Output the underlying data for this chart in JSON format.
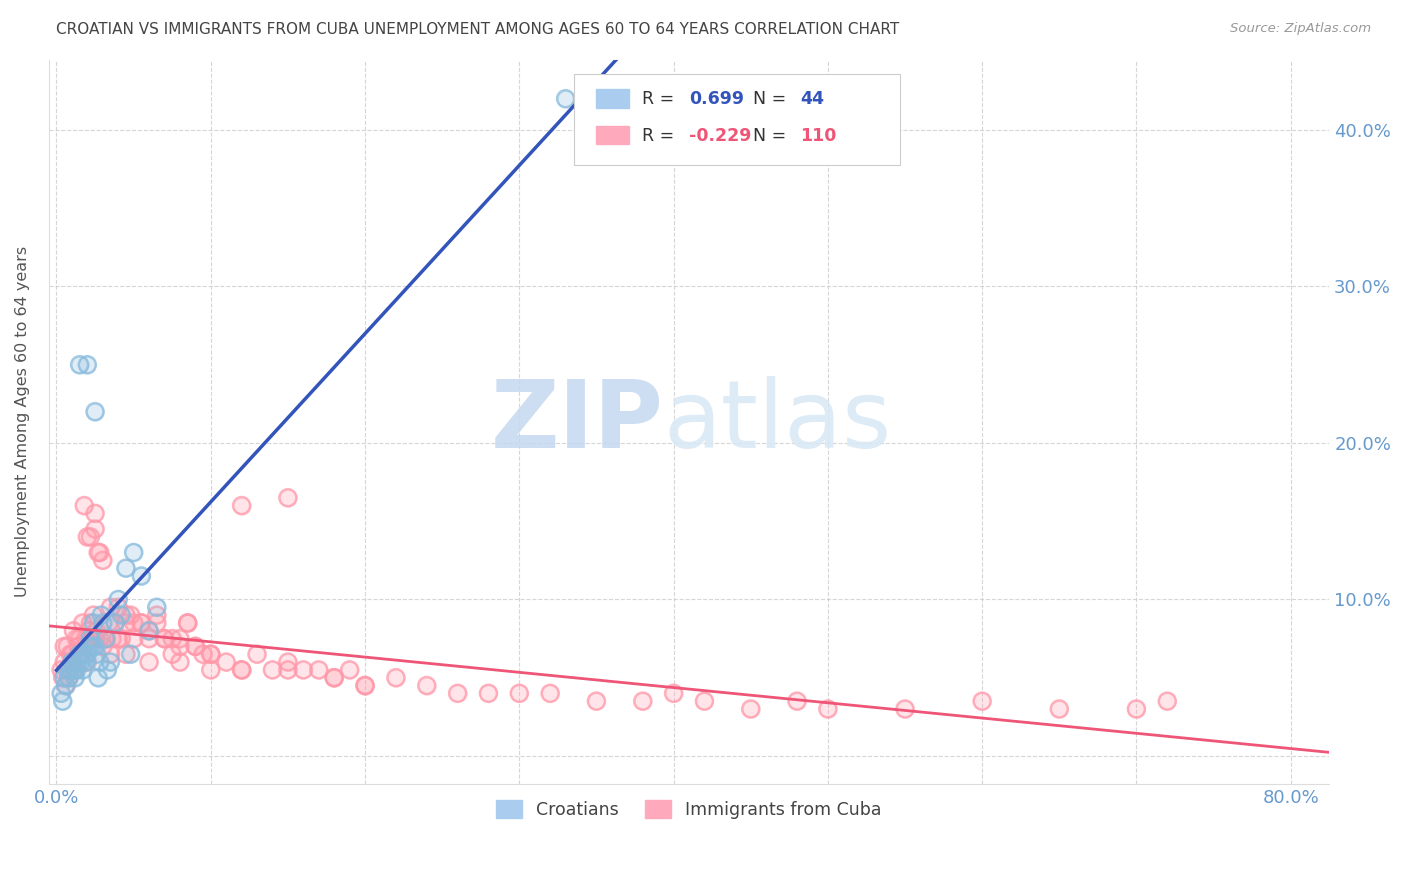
{
  "title": "CROATIAN VS IMMIGRANTS FROM CUBA UNEMPLOYMENT AMONG AGES 60 TO 64 YEARS CORRELATION CHART",
  "source_text": "Source: ZipAtlas.com",
  "ylabel": "Unemployment Among Ages 60 to 64 years",
  "watermark_zip": "ZIP",
  "watermark_atlas": "atlas",
  "r_croatian": 0.699,
  "n_croatian": 44,
  "r_cuba": -0.229,
  "n_cuba": 110,
  "xlim_min": -0.005,
  "xlim_max": 0.825,
  "ylim_min": -0.018,
  "ylim_max": 0.445,
  "xtick_positions": [
    0.0,
    0.1,
    0.2,
    0.3,
    0.4,
    0.5,
    0.6,
    0.7,
    0.8
  ],
  "xtick_labels": [
    "0.0%",
    "",
    "",
    "",
    "",
    "",
    "",
    "",
    "80.0%"
  ],
  "ytick_positions": [
    0.0,
    0.1,
    0.2,
    0.3,
    0.4
  ],
  "ytick_labels": [
    "",
    "10.0%",
    "20.0%",
    "30.0%",
    "40.0%"
  ],
  "blue_scatter_color": "#88BBDD",
  "pink_scatter_color": "#FF99AA",
  "blue_line_color": "#3355BB",
  "pink_line_color": "#EE5577",
  "dashed_line_color": "#99BBDD",
  "axis_tick_color": "#6699CC",
  "title_color": "#444444",
  "source_color": "#999999",
  "background_color": "#FFFFFF",
  "grid_color": "#CCCCCC",
  "legend_label1": "Croatians",
  "legend_label2": "Immigrants from Cuba",
  "croatian_x": [
    0.003,
    0.004,
    0.005,
    0.006,
    0.007,
    0.008,
    0.009,
    0.01,
    0.011,
    0.012,
    0.013,
    0.014,
    0.015,
    0.016,
    0.017,
    0.018,
    0.019,
    0.02,
    0.021,
    0.022,
    0.023,
    0.024,
    0.025,
    0.026,
    0.027,
    0.028,
    0.029,
    0.03,
    0.032,
    0.033,
    0.035,
    0.038,
    0.04,
    0.042,
    0.045,
    0.048,
    0.05,
    0.055,
    0.06,
    0.065,
    0.015,
    0.02,
    0.025,
    0.33
  ],
  "croatian_y": [
    0.04,
    0.035,
    0.05,
    0.045,
    0.055,
    0.05,
    0.055,
    0.06,
    0.055,
    0.05,
    0.055,
    0.06,
    0.065,
    0.06,
    0.055,
    0.065,
    0.06,
    0.065,
    0.07,
    0.075,
    0.07,
    0.085,
    0.07,
    0.065,
    0.05,
    0.06,
    0.09,
    0.085,
    0.075,
    0.055,
    0.06,
    0.085,
    0.1,
    0.09,
    0.12,
    0.065,
    0.13,
    0.115,
    0.08,
    0.095,
    0.25,
    0.25,
    0.22,
    0.42
  ],
  "cuba_x": [
    0.003,
    0.004,
    0.005,
    0.006,
    0.007,
    0.008,
    0.009,
    0.01,
    0.011,
    0.012,
    0.013,
    0.014,
    0.015,
    0.016,
    0.017,
    0.018,
    0.019,
    0.02,
    0.021,
    0.022,
    0.023,
    0.024,
    0.025,
    0.026,
    0.027,
    0.028,
    0.03,
    0.032,
    0.034,
    0.036,
    0.038,
    0.04,
    0.042,
    0.045,
    0.048,
    0.05,
    0.055,
    0.06,
    0.065,
    0.07,
    0.075,
    0.08,
    0.085,
    0.09,
    0.095,
    0.1,
    0.11,
    0.12,
    0.13,
    0.14,
    0.15,
    0.16,
    0.17,
    0.18,
    0.19,
    0.2,
    0.22,
    0.24,
    0.26,
    0.28,
    0.3,
    0.32,
    0.35,
    0.38,
    0.4,
    0.42,
    0.45,
    0.48,
    0.5,
    0.55,
    0.6,
    0.65,
    0.7,
    0.72,
    0.005,
    0.008,
    0.01,
    0.012,
    0.015,
    0.018,
    0.02,
    0.022,
    0.025,
    0.028,
    0.03,
    0.035,
    0.04,
    0.045,
    0.05,
    0.055,
    0.06,
    0.065,
    0.07,
    0.075,
    0.08,
    0.085,
    0.09,
    0.1,
    0.12,
    0.15,
    0.025,
    0.035,
    0.045,
    0.06,
    0.08,
    0.1,
    0.12,
    0.15,
    0.18,
    0.2
  ],
  "cuba_y": [
    0.055,
    0.05,
    0.06,
    0.045,
    0.07,
    0.05,
    0.065,
    0.06,
    0.08,
    0.055,
    0.075,
    0.07,
    0.075,
    0.065,
    0.085,
    0.07,
    0.075,
    0.06,
    0.08,
    0.085,
    0.075,
    0.09,
    0.155,
    0.08,
    0.13,
    0.075,
    0.07,
    0.075,
    0.085,
    0.075,
    0.085,
    0.075,
    0.075,
    0.085,
    0.09,
    0.075,
    0.085,
    0.075,
    0.09,
    0.075,
    0.065,
    0.075,
    0.085,
    0.07,
    0.065,
    0.065,
    0.06,
    0.055,
    0.065,
    0.055,
    0.06,
    0.055,
    0.055,
    0.05,
    0.055,
    0.045,
    0.05,
    0.045,
    0.04,
    0.04,
    0.04,
    0.04,
    0.035,
    0.035,
    0.04,
    0.035,
    0.03,
    0.035,
    0.03,
    0.03,
    0.035,
    0.03,
    0.03,
    0.035,
    0.07,
    0.055,
    0.065,
    0.055,
    0.065,
    0.16,
    0.14,
    0.14,
    0.145,
    0.13,
    0.125,
    0.095,
    0.095,
    0.09,
    0.085,
    0.085,
    0.08,
    0.085,
    0.075,
    0.075,
    0.07,
    0.085,
    0.07,
    0.065,
    0.16,
    0.165,
    0.075,
    0.065,
    0.065,
    0.06,
    0.06,
    0.055,
    0.055,
    0.055,
    0.05,
    0.045
  ]
}
